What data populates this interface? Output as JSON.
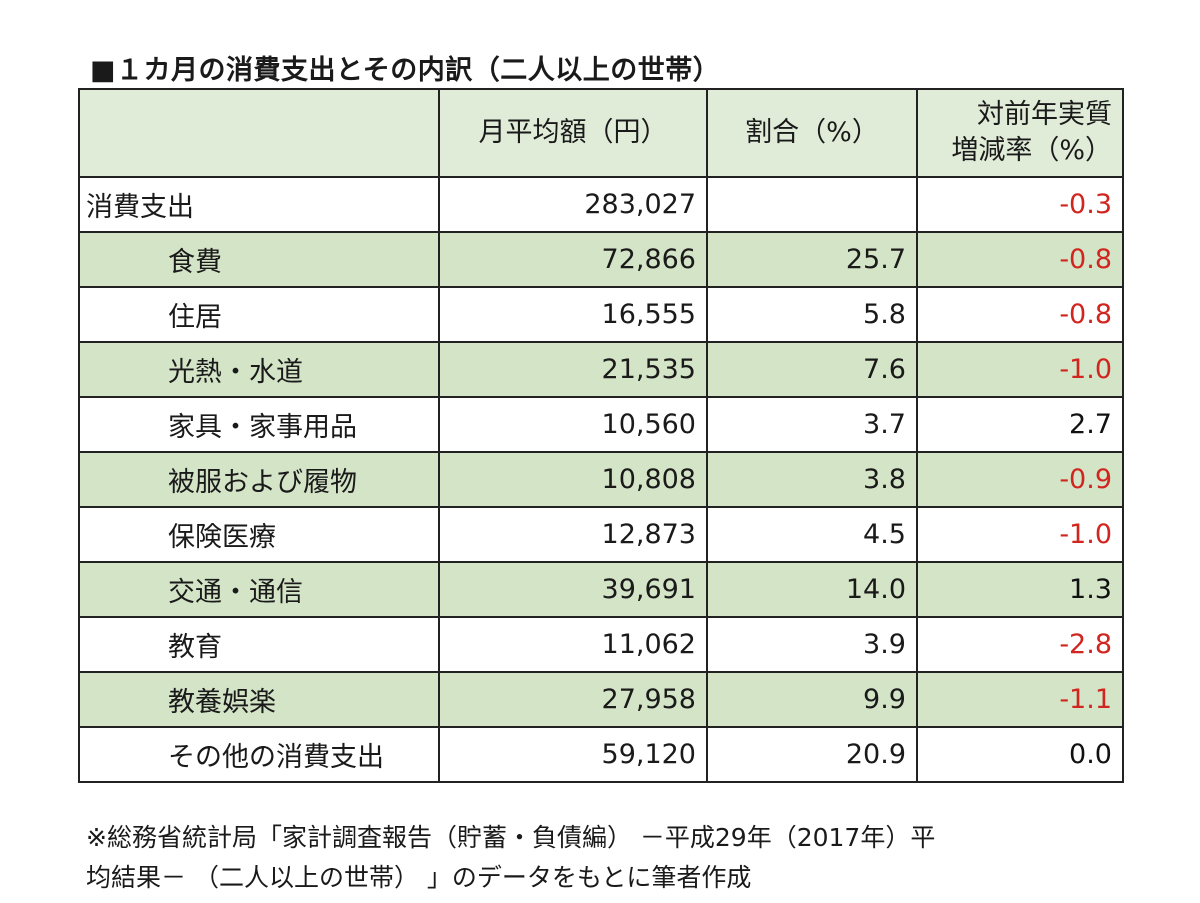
{
  "title": "■１カ月の消費支出とその内訳（二人以上の世帯）",
  "table": {
    "headers": {
      "item": "",
      "monthly": "月平均額（円）",
      "share": "割合（%）",
      "growth_line1": "対前年実質",
      "growth_line2": "増減率（%）"
    },
    "rows": [
      {
        "label": "消費支出",
        "monthly": "283,027",
        "share": "",
        "growth": "-0.3"
      },
      {
        "label": "食費",
        "monthly": "72,866",
        "share": "25.7",
        "growth": "-0.8"
      },
      {
        "label": "住居",
        "monthly": "16,555",
        "share": "5.8",
        "growth": "-0.8"
      },
      {
        "label": "光熱・水道",
        "monthly": "21,535",
        "share": "7.6",
        "growth": "-1.0"
      },
      {
        "label": "家具・家事用品",
        "monthly": "10,560",
        "share": "3.7",
        "growth": "2.7"
      },
      {
        "label": "被服および履物",
        "monthly": "10,808",
        "share": "3.8",
        "growth": "-0.9"
      },
      {
        "label": "保険医療",
        "monthly": "12,873",
        "share": "4.5",
        "growth": "-1.0"
      },
      {
        "label": "交通・通信",
        "monthly": "39,691",
        "share": "14.0",
        "growth": "1.3"
      },
      {
        "label": "教育",
        "monthly": "11,062",
        "share": "3.9",
        "growth": "-2.8"
      },
      {
        "label": "教養娯楽",
        "monthly": "27,958",
        "share": "9.9",
        "growth": "-1.1"
      },
      {
        "label": "その他の消費支出",
        "monthly": "59,120",
        "share": "20.9",
        "growth": "0.0"
      }
    ]
  },
  "colors": {
    "header_bg": "#e0ecd8",
    "green_row_bg": "#d4e4c7",
    "negative": "#d0261f",
    "border": "#222222"
  },
  "note": {
    "line1": "※総務省統計局「家計調査報告（貯蓄・負債編） －平成29年（2017年）平",
    "line2": "均結果－ （二人以上の世帯） 」のデータをもとに筆者作成"
  }
}
